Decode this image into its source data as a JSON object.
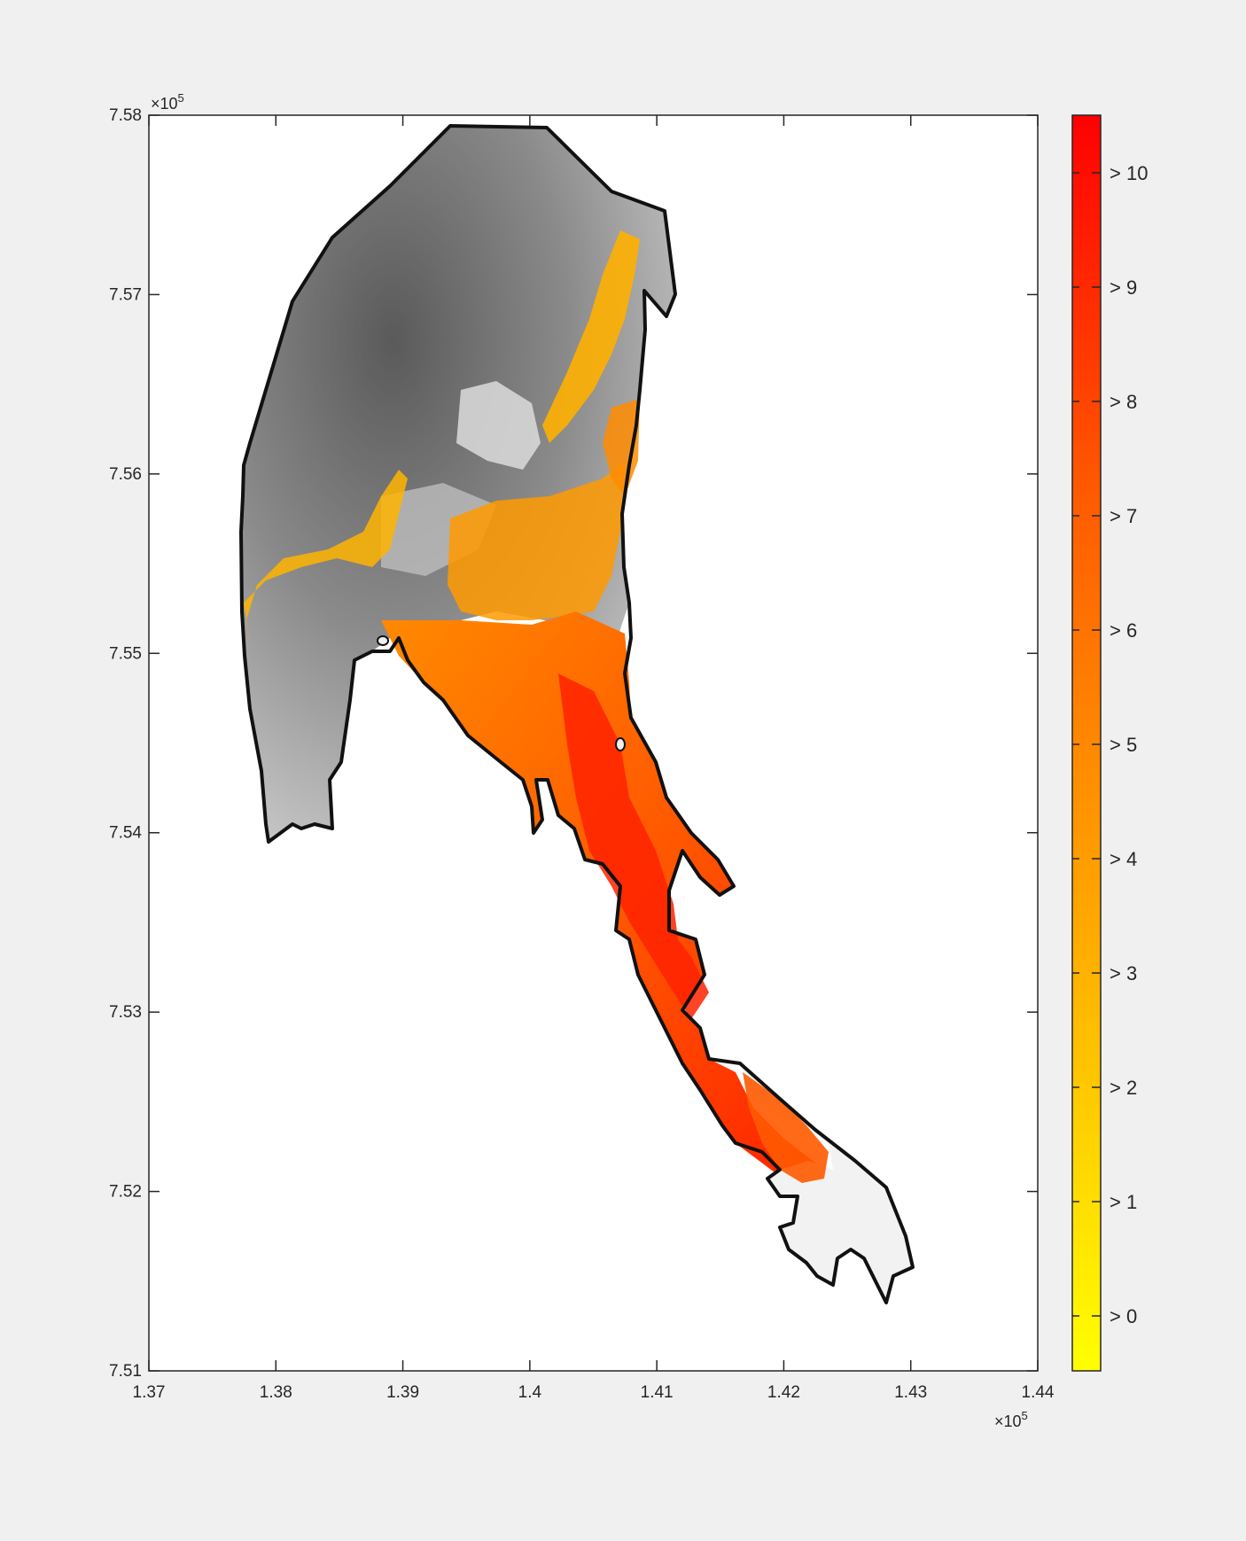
{
  "figure": {
    "background": "#f0f0f0",
    "x_exponent_label": "×10",
    "x_exponent_power": "5",
    "y_exponent_label": "×10",
    "y_exponent_power": "5"
  },
  "map_axes": {
    "x_ticks": [
      "1.37",
      "1.38",
      "1.39",
      "1.4",
      "1.41",
      "1.42",
      "1.43",
      "1.44"
    ],
    "y_ticks": [
      "7.58",
      "7.57",
      "7.56",
      "7.55",
      "7.54",
      "7.53",
      "7.52",
      "7.51"
    ],
    "xlim": [
      137000,
      144000
    ],
    "ylim": [
      751000,
      758000
    ]
  },
  "colorbar": {
    "tick_labels": [
      "> 10",
      "> 9",
      "> 8",
      "> 7",
      "> 6",
      "> 5",
      "> 4",
      "> 3",
      "> 2",
      "> 1",
      "> 0"
    ],
    "color_low": "#ffff00",
    "color_mid": "#ff9900",
    "color_high": "#ff0000"
  },
  "colors": {
    "outline": "#111111",
    "gray_dark": "#555555",
    "gray_light": "#ebebeb",
    "red_core": "#ff2a00",
    "orange": "#ff6a00"
  }
}
